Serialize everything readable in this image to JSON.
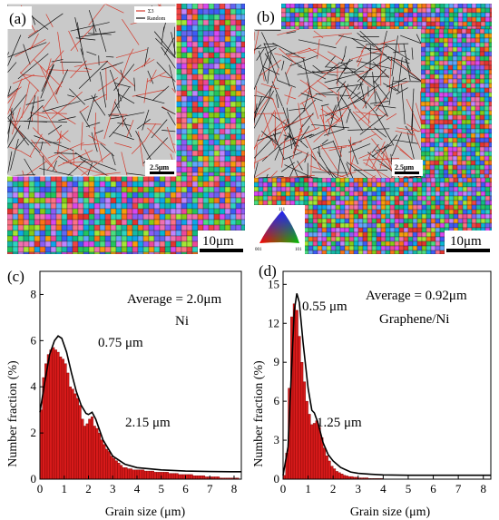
{
  "panels": {
    "a": {
      "label": "(a)",
      "legend": {
        "sigma3": "Σ3",
        "random": "Random"
      },
      "scale_inset": "2.5μm",
      "scale_main": "10μm"
    },
    "b": {
      "label": "(b)",
      "ipf_key": {
        "top": "111",
        "left": "001",
        "right": "101"
      },
      "scale_inset": "2.5μm",
      "scale_main": "10μm"
    }
  },
  "colors": {
    "bar_fill": "#d71a1a",
    "bar_edge": "#7a0000",
    "sigma3_line": "#d33a2c",
    "random_line": "#111111",
    "inset_bg": "#c8c8c8"
  },
  "chart_data": [
    {
      "type": "bar",
      "label": "(c)",
      "annotation_average": "Average = 2.0μm",
      "annotation_material": "Ni",
      "peak_labels": [
        "0.75 μm",
        "2.15 μm"
      ],
      "xlabel": "Grain size (μm)",
      "ylabel": "Number fraction (%)",
      "xlim": [
        0,
        8.3
      ],
      "ylim": [
        0,
        9
      ],
      "xticks": [
        "0",
        "1",
        "2",
        "3",
        "4",
        "5",
        "6",
        "7",
        "8"
      ],
      "yticks": [
        "0",
        "2",
        "4",
        "6",
        "8"
      ],
      "bin_width": 0.1,
      "x_start": 0.05,
      "values": [
        3.0,
        4.4,
        5.0,
        5.4,
        5.6,
        5.7,
        5.6,
        5.5,
        5.3,
        5.2,
        5.0,
        4.6,
        4.0,
        3.9,
        3.7,
        3.5,
        3.2,
        2.6,
        2.3,
        2.4,
        2.6,
        2.7,
        2.3,
        2.2,
        2.0,
        1.7,
        1.5,
        1.3,
        1.2,
        1.0,
        0.9,
        0.8,
        0.7,
        0.6,
        0.5,
        0.5,
        0.45,
        0.45,
        0.4,
        0.4,
        0.4,
        0.4,
        0.4,
        0.35,
        0.35,
        0.35,
        0.35,
        0.3,
        0.3,
        0.3,
        0.3,
        0.3,
        0.3,
        0.25,
        0.25,
        0.25,
        0.25,
        0.2,
        0.2,
        0.2,
        0.2,
        0.2,
        0.2,
        0.15,
        0.15,
        0.15,
        0.15,
        0.15,
        0.1,
        0.1,
        0.1,
        0.1,
        0.1,
        0.1,
        0.05,
        0.05,
        0.05,
        0.05,
        0.05,
        0.05,
        0.05,
        0.05
      ],
      "fit_x": [
        0,
        0.2,
        0.4,
        0.6,
        0.75,
        0.9,
        1.1,
        1.3,
        1.5,
        1.7,
        1.9,
        2.0,
        2.15,
        2.3,
        2.6,
        3.0,
        3.5,
        4.0,
        5.0,
        6.0,
        7.0,
        8.0,
        8.3
      ],
      "fit_y": [
        2.9,
        4.2,
        5.4,
        6.0,
        6.2,
        6.1,
        5.5,
        4.6,
        3.8,
        3.2,
        2.85,
        2.8,
        2.9,
        2.6,
        1.7,
        1.0,
        0.65,
        0.5,
        0.4,
        0.35,
        0.33,
        0.32,
        0.32
      ]
    },
    {
      "type": "bar",
      "label": "(d)",
      "annotation_average": "Average = 0.92μm",
      "annotation_material": "Graphene/Ni",
      "peak_labels": [
        "0.55 μm",
        "1.25 μm"
      ],
      "xlabel": "Grain size (μm)",
      "ylabel": "Number fraction (%)",
      "xlim": [
        0,
        8.3
      ],
      "ylim": [
        0,
        16
      ],
      "xticks": [
        "0",
        "1",
        "2",
        "3",
        "4",
        "5",
        "6",
        "7",
        "8"
      ],
      "yticks": [
        "0",
        "3",
        "6",
        "9",
        "12",
        "15"
      ],
      "bin_width": 0.1,
      "x_start": 0.05,
      "values": [
        0.3,
        2.0,
        7.0,
        12.5,
        13.5,
        13.0,
        11.0,
        9.0,
        7.5,
        6.0,
        5.0,
        4.2,
        4.3,
        4.5,
        4.0,
        3.2,
        2.4,
        1.8,
        1.4,
        1.0,
        0.8,
        0.6,
        0.5,
        0.4,
        0.3,
        0.25,
        0.2,
        0.2,
        0.15,
        0.15,
        0.1,
        0.1,
        0.1,
        0.1,
        0.05,
        0.05,
        0.05,
        0.05,
        0.05,
        0.05
      ],
      "fit_x": [
        0,
        0.2,
        0.35,
        0.45,
        0.55,
        0.65,
        0.8,
        1.0,
        1.15,
        1.25,
        1.4,
        1.6,
        1.8,
        2.0,
        2.3,
        2.7,
        3.0,
        3.5,
        4.0,
        5.0,
        6.0,
        7.0,
        8.0,
        8.3
      ],
      "fit_y": [
        0.3,
        2.5,
        9.0,
        13.0,
        14.3,
        13.6,
        10.5,
        7.0,
        5.3,
        5.1,
        4.3,
        2.8,
        1.9,
        1.4,
        0.9,
        0.55,
        0.45,
        0.38,
        0.33,
        0.3,
        0.3,
        0.3,
        0.3,
        0.3
      ]
    }
  ]
}
